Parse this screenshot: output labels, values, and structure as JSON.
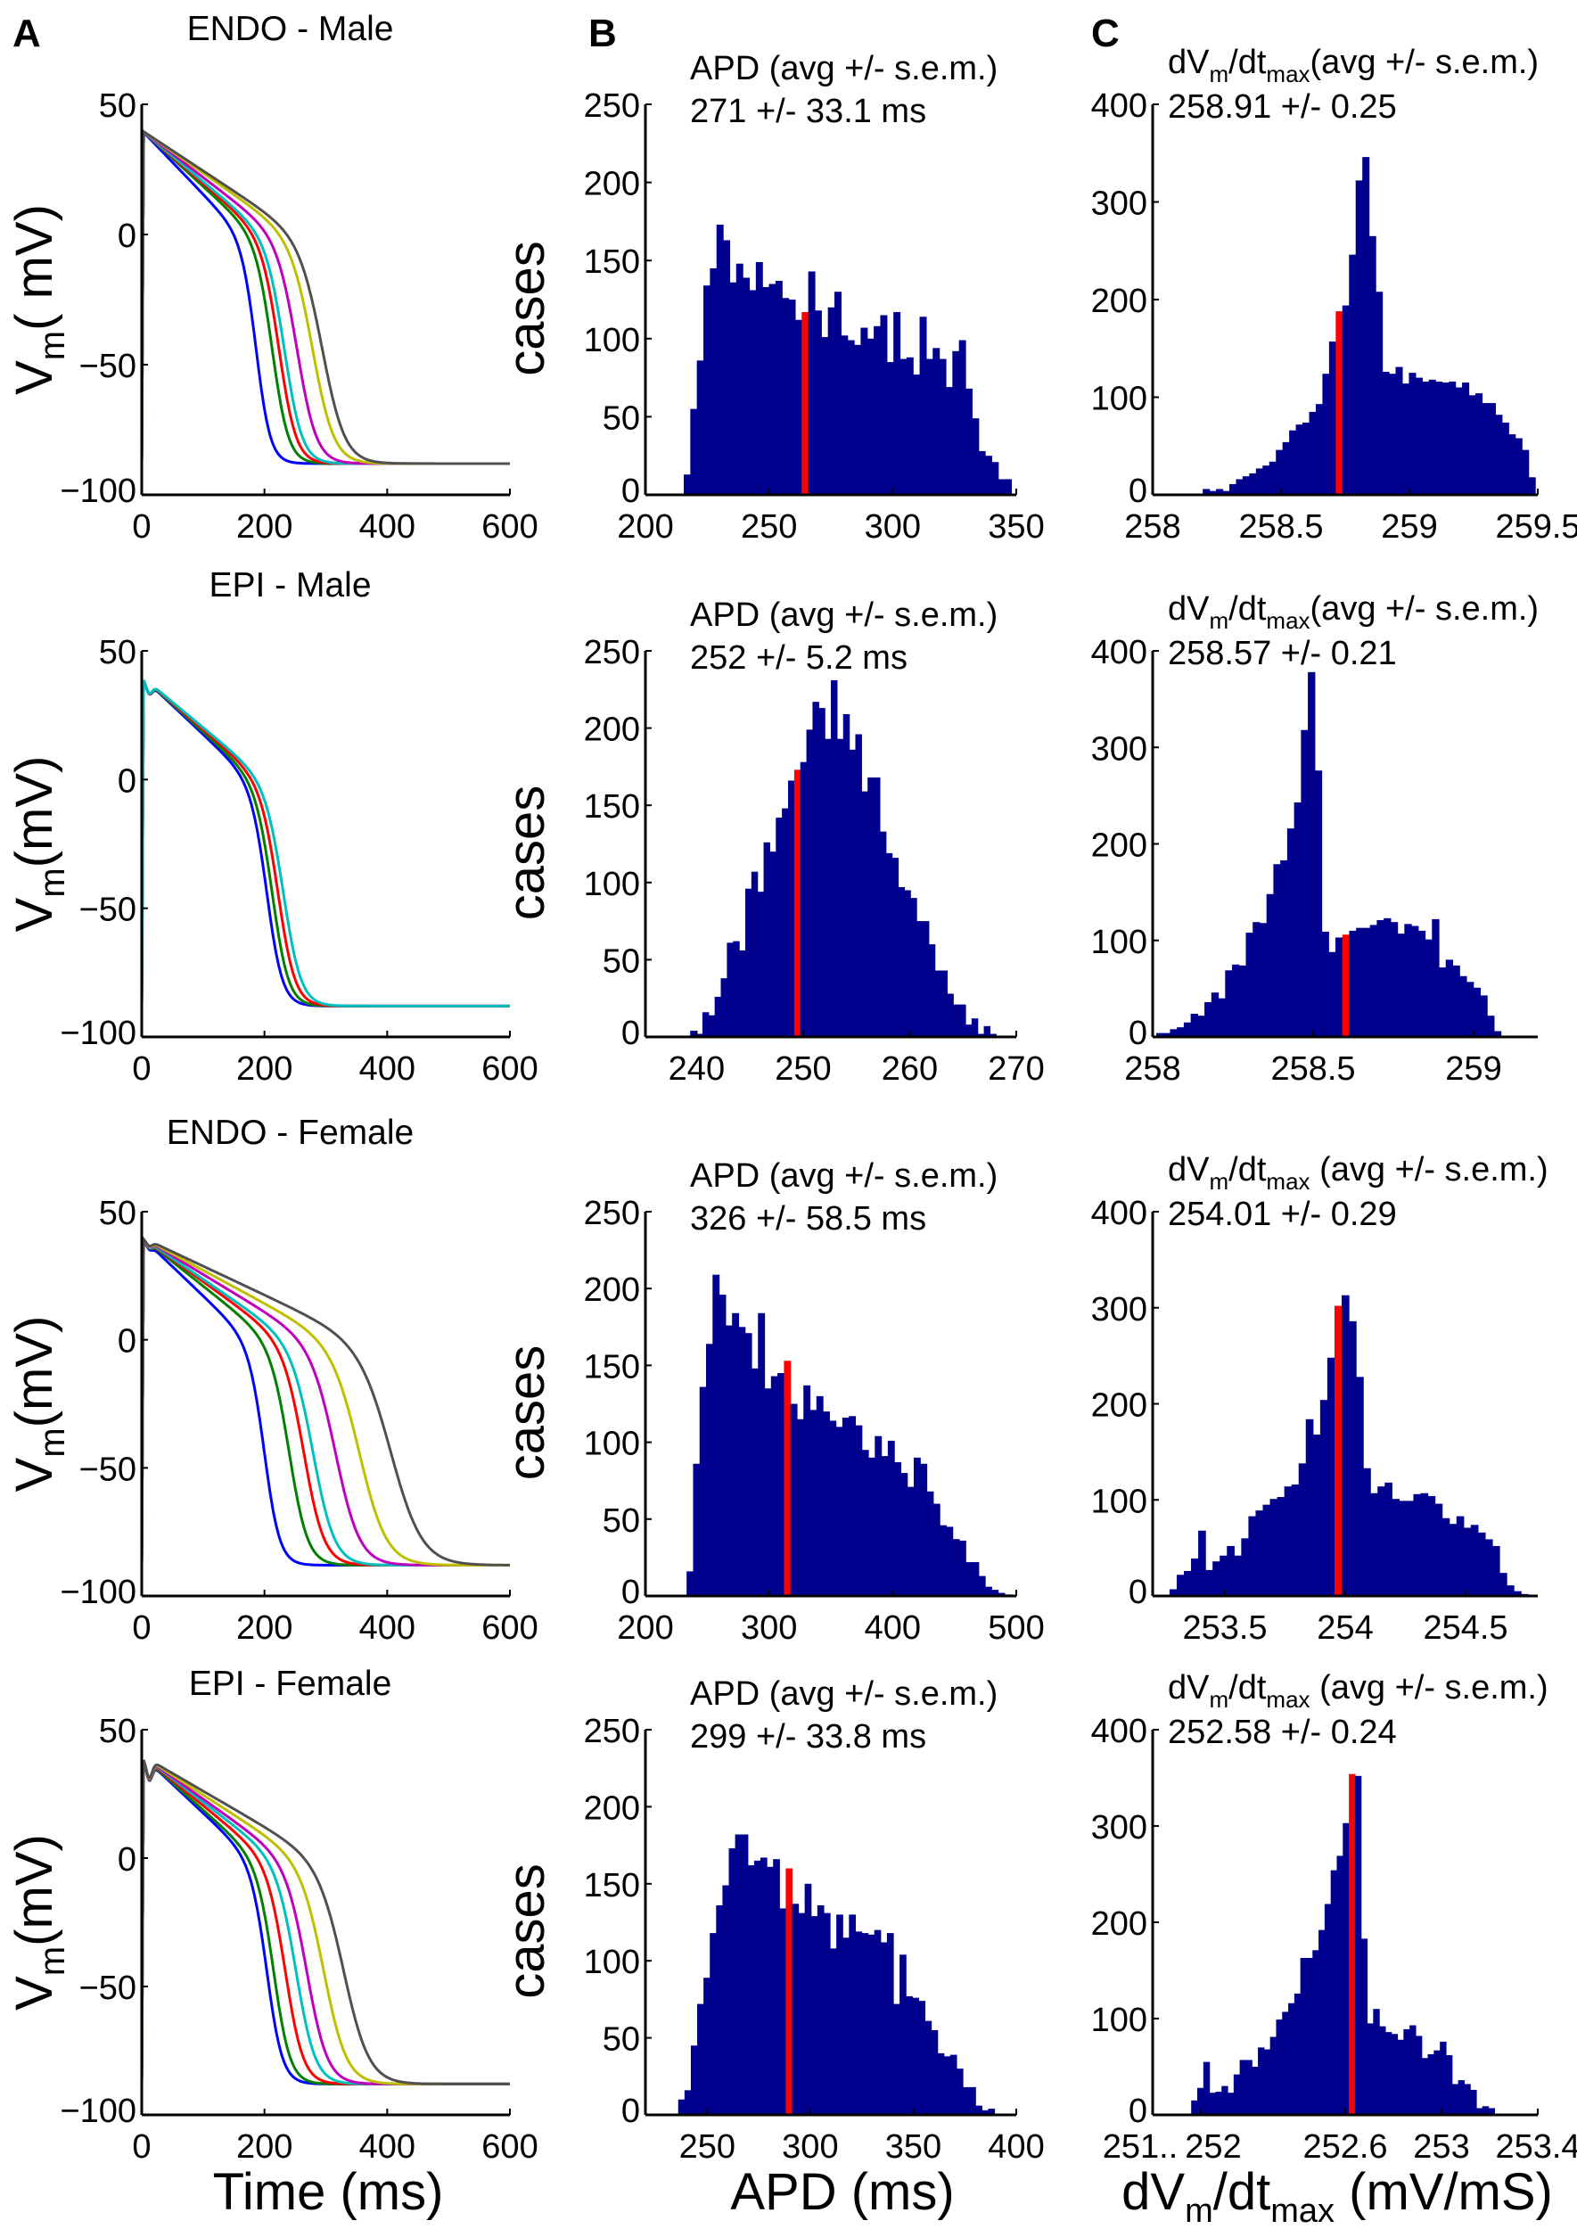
{
  "figure": {
    "panel_labels": [
      "A",
      "B",
      "C"
    ],
    "bottom_xlabels": {
      "A": {
        "text": "Time (ms)"
      },
      "B": {
        "text": "APD (ms)"
      },
      "C": {
        "a": "dV",
        "sub1": "m",
        "b": "/dt",
        "sub2": "max",
        "c": " (mV/mS)"
      }
    }
  },
  "chart_data": [
    {
      "panel": "A",
      "row": 0,
      "type": "line",
      "title": "ENDO - Male",
      "ylabel": {
        "a": "V",
        "sub": "m",
        "b": "( mV)"
      },
      "xlim": [
        0,
        600
      ],
      "ylim": [
        -100,
        50
      ],
      "xticks": [
        0,
        200,
        400,
        600
      ],
      "xticklabels": [
        "0",
        "200",
        "400",
        "600"
      ],
      "yticks": [
        -100,
        -50,
        0,
        50
      ],
      "yticklabels": [
        "−100",
        "−50",
        "0",
        "50"
      ],
      "rest_mV": -88,
      "peak_mV": 40,
      "notch_mV": 0,
      "series": [
        {
          "name": "blue",
          "color": "#0000ff",
          "repol_end_ms": 235
        },
        {
          "name": "green",
          "color": "#007f00",
          "repol_end_ms": 268
        },
        {
          "name": "red",
          "color": "#ff0000",
          "repol_end_ms": 282
        },
        {
          "name": "cyan",
          "color": "#00bfbf",
          "repol_end_ms": 293
        },
        {
          "name": "magenta",
          "color": "#bf00bf",
          "repol_end_ms": 319
        },
        {
          "name": "yellow",
          "color": "#bfbf00",
          "repol_end_ms": 351
        },
        {
          "name": "gray",
          "color": "#505050",
          "repol_end_ms": 371
        }
      ]
    },
    {
      "panel": "B",
      "row": 0,
      "type": "bar",
      "stat_label": "APD (avg +/- s.e.m.)",
      "stat_value": "271 +/- 33.1 ms",
      "ylabel": "cases",
      "xlim": [
        200,
        350
      ],
      "ylim": [
        0,
        250
      ],
      "xticks": [
        200,
        250,
        300,
        350
      ],
      "xticklabels": [
        "200",
        "250",
        "300",
        "350"
      ],
      "yticks": [
        0,
        50,
        100,
        150,
        200,
        250
      ],
      "yticklabels": [
        "0",
        "50",
        "100",
        "150",
        "200",
        "250"
      ],
      "bin_start": 215.5,
      "bin_width": 2.65,
      "mean_bin_index": 18,
      "counts": [
        13,
        55,
        86,
        134,
        145,
        173,
        163,
        136,
        148,
        139,
        131,
        149,
        133,
        135,
        137,
        126,
        125,
        112,
        117,
        143,
        118,
        101,
        120,
        130,
        102,
        99,
        96,
        107,
        100,
        108,
        115,
        85,
        117,
        87,
        88,
        77,
        114,
        87,
        94,
        87,
        69,
        92,
        99,
        68,
        49,
        28,
        25,
        21,
        10,
        10
      ]
    },
    {
      "panel": "C",
      "row": 0,
      "type": "bar",
      "stat_label": {
        "a": "dV",
        "sub1": "m",
        "b": "/dt",
        "sub2": "max",
        "c": "(avg +/- s.e.m.)"
      },
      "stat_value": "258.91 +/- 0.25",
      "xlim": [
        258,
        259.5
      ],
      "ylim": [
        0,
        400
      ],
      "xticks": [
        258,
        258.5,
        259,
        259.5
      ],
      "xticklabels": [
        "258",
        "258.5",
        "259",
        "259.5"
      ],
      "yticks": [
        0,
        100,
        200,
        300,
        400
      ],
      "yticklabels": [
        "0",
        "100",
        "200",
        "300",
        "400"
      ],
      "bin_start": 258.195,
      "bin_width": 0.0259,
      "mean_bin_index": 20,
      "counts": [
        6,
        4,
        6,
        4,
        11,
        16,
        19,
        22,
        27,
        30,
        34,
        46,
        54,
        66,
        72,
        74,
        85,
        93,
        124,
        157,
        188,
        194,
        246,
        322,
        346,
        265,
        208,
        126,
        124,
        131,
        114,
        125,
        120,
        116,
        118,
        116,
        115,
        116,
        110,
        115,
        102,
        104,
        94,
        94,
        82,
        74,
        62,
        58,
        46,
        18
      ]
    },
    {
      "panel": "A",
      "row": 1,
      "type": "line",
      "title": "EPI - Male",
      "ylabel": {
        "a": "V",
        "sub": "m",
        "b": "(mV)"
      },
      "xlim": [
        0,
        600
      ],
      "ylim": [
        -100,
        50
      ],
      "xticks": [
        0,
        200,
        400,
        600
      ],
      "xticklabels": [
        "0",
        "200",
        "400",
        "600"
      ],
      "yticks": [
        -100,
        -50,
        0,
        50
      ],
      "yticklabels": [
        "−100",
        "−50",
        "0",
        "50"
      ],
      "rest_mV": -88,
      "peak_mV": 40,
      "notch_mV": 4,
      "series": [
        {
          "name": "blue",
          "color": "#0000ff",
          "repol_end_ms": 257
        },
        {
          "name": "green",
          "color": "#007f00",
          "repol_end_ms": 268
        },
        {
          "name": "red",
          "color": "#ff0000",
          "repol_end_ms": 280
        },
        {
          "name": "cyan",
          "color": "#00bfbf",
          "repol_end_ms": 291
        }
      ]
    },
    {
      "panel": "B",
      "row": 1,
      "type": "bar",
      "stat_label": "APD (avg +/- s.e.m.)",
      "stat_value": "252 +/- 5.2 ms",
      "ylabel": "cases",
      "xlim": [
        235.2,
        270
      ],
      "ylim": [
        0,
        250
      ],
      "xticks": [
        240,
        250,
        260,
        270
      ],
      "xticklabels": [
        "240",
        "250",
        "260",
        "270"
      ],
      "yticks": [
        0,
        50,
        100,
        150,
        200,
        250
      ],
      "yticklabels": [
        "0",
        "50",
        "100",
        "150",
        "200",
        "250"
      ],
      "bin_start": 239.4,
      "bin_width": 0.574,
      "mean_bin_index": 17,
      "counts": [
        4,
        2,
        16,
        14,
        26,
        38,
        61,
        62,
        56,
        96,
        107,
        94,
        126,
        120,
        142,
        148,
        166,
        173,
        178,
        199,
        217,
        213,
        193,
        231,
        193,
        209,
        186,
        196,
        159,
        168,
        168,
        133,
        119,
        116,
        97,
        95,
        90,
        75,
        75,
        60,
        43,
        43,
        28,
        21,
        21,
        8,
        12,
        2,
        7,
        2
      ]
    },
    {
      "panel": "C",
      "row": 1,
      "type": "bar",
      "stat_label": {
        "a": "dV",
        "sub1": "m",
        "b": "/dt",
        "sub2": "max",
        "c": "(avg +/- s.e.m.)"
      },
      "stat_value": "258.57 +/- 0.21",
      "xlim": [
        258,
        259.2
      ],
      "ylim": [
        0,
        400
      ],
      "xticks": [
        258,
        258.5,
        259
      ],
      "xticklabels": [
        "258",
        "258.5",
        "259"
      ],
      "yticks": [
        0,
        100,
        200,
        300,
        400
      ],
      "yticklabels": [
        "0",
        "100",
        "200",
        "300",
        "400"
      ],
      "bin_start": 258.011,
      "bin_width": 0.02148,
      "mean_bin_index": 27,
      "counts": [
        4,
        4,
        8,
        10,
        15,
        24,
        22,
        36,
        46,
        40,
        69,
        75,
        74,
        108,
        119,
        118,
        148,
        179,
        183,
        216,
        243,
        318,
        378,
        276,
        109,
        88,
        103,
        106,
        110,
        113,
        113,
        116,
        121,
        123,
        119,
        107,
        117,
        115,
        110,
        101,
        122,
        72,
        80,
        74,
        63,
        57,
        51,
        43,
        22,
        6
      ]
    },
    {
      "panel": "A",
      "row": 2,
      "type": "line",
      "title": "ENDO - Female",
      "ylabel": {
        "a": "V",
        "sub": "m",
        "b": "(mV)"
      },
      "xlim": [
        0,
        600
      ],
      "ylim": [
        -100,
        50
      ],
      "xticks": [
        0,
        200,
        400,
        600
      ],
      "xticklabels": [
        "0",
        "200",
        "400",
        "600"
      ],
      "yticks": [
        -100,
        -50,
        0,
        50
      ],
      "yticklabels": [
        "−100",
        "−50",
        "0",
        "50"
      ],
      "rest_mV": -88,
      "peak_mV": 40,
      "notch_mV": 2,
      "series": [
        {
          "name": "blue",
          "color": "#0000ff",
          "repol_end_ms": 252
        },
        {
          "name": "green",
          "color": "#007f00",
          "repol_end_ms": 303
        },
        {
          "name": "red",
          "color": "#ff0000",
          "repol_end_ms": 333
        },
        {
          "name": "cyan",
          "color": "#00bfbf",
          "repol_end_ms": 352
        },
        {
          "name": "magenta",
          "color": "#bf00bf",
          "repol_end_ms": 398
        },
        {
          "name": "yellow",
          "color": "#bfbf00",
          "repol_end_ms": 447
        },
        {
          "name": "gray",
          "color": "#505050",
          "repol_end_ms": 512
        }
      ]
    },
    {
      "panel": "B",
      "row": 2,
      "type": "bar",
      "stat_label": "APD (avg +/- s.e.m.)",
      "stat_value": "326 +/- 58.5 ms",
      "ylabel": "cases",
      "xlim": [
        200,
        500
      ],
      "ylim": [
        0,
        250
      ],
      "xticks": [
        200,
        300,
        400,
        500
      ],
      "xticklabels": [
        "200",
        "300",
        "400",
        "500"
      ],
      "yticks": [
        0,
        50,
        100,
        150,
        200,
        250
      ],
      "yticklabels": [
        "0",
        "50",
        "100",
        "150",
        "200",
        "250"
      ],
      "bin_start": 233.3,
      "bin_width": 5.25,
      "mean_bin_index": 15,
      "counts": [
        16,
        86,
        136,
        164,
        209,
        196,
        176,
        184,
        175,
        171,
        148,
        184,
        135,
        143,
        145,
        153,
        125,
        115,
        137,
        121,
        130,
        120,
        114,
        110,
        116,
        117,
        111,
        95,
        90,
        104,
        91,
        101,
        87,
        80,
        71,
        90,
        86,
        68,
        60,
        46,
        45,
        37,
        36,
        22,
        22,
        13,
        6,
        4,
        2,
        1
      ]
    },
    {
      "panel": "C",
      "row": 2,
      "type": "bar",
      "stat_label": {
        "a": "dV",
        "sub1": "m",
        "b": "/dt",
        "sub2": "max",
        "c": " (avg +/- s.e.m.)"
      },
      "stat_value": "254.01 +/- 0.29",
      "xlim": [
        253.2,
        254.8
      ],
      "ylim": [
        0,
        400
      ],
      "xticks": [
        253.5,
        254,
        254.5
      ],
      "xticklabels": [
        "253.5",
        "254",
        "254.5"
      ],
      "yticks": [
        0,
        100,
        200,
        300,
        400
      ],
      "yticklabels": [
        "0",
        "100",
        "200",
        "300",
        "400"
      ],
      "bin_start": 253.27,
      "bin_width": 0.0298,
      "mean_bin_index": 23,
      "counts": [
        7,
        22,
        26,
        39,
        68,
        27,
        36,
        42,
        52,
        42,
        60,
        83,
        89,
        95,
        101,
        103,
        114,
        116,
        138,
        184,
        168,
        204,
        248,
        302,
        313,
        286,
        228,
        133,
        107,
        114,
        118,
        101,
        99,
        99,
        106,
        107,
        104,
        96,
        81,
        75,
        83,
        71,
        74,
        66,
        59,
        52,
        24,
        11,
        5,
        2,
        1
      ]
    },
    {
      "panel": "A",
      "row": 3,
      "type": "line",
      "title": "EPI - Female",
      "ylabel": {
        "a": "V",
        "sub": "m",
        "b": "(mV)"
      },
      "xlim": [
        0,
        600
      ],
      "ylim": [
        -100,
        50
      ],
      "xticks": [
        0,
        200,
        400,
        600
      ],
      "xticklabels": [
        "0",
        "200",
        "400",
        "600"
      ],
      "yticks": [
        -100,
        -50,
        0,
        50
      ],
      "yticklabels": [
        "−100",
        "−50",
        "0",
        "50"
      ],
      "rest_mV": -88,
      "peak_mV": 40,
      "notch_mV": 7,
      "series": [
        {
          "name": "blue",
          "color": "#0000ff",
          "repol_end_ms": 257
        },
        {
          "name": "green",
          "color": "#007f00",
          "repol_end_ms": 271
        },
        {
          "name": "red",
          "color": "#ff0000",
          "repol_end_ms": 295
        },
        {
          "name": "cyan",
          "color": "#00bfbf",
          "repol_end_ms": 317
        },
        {
          "name": "magenta",
          "color": "#bf00bf",
          "repol_end_ms": 339
        },
        {
          "name": "yellow",
          "color": "#bfbf00",
          "repol_end_ms": 374
        },
        {
          "name": "gray",
          "color": "#505050",
          "repol_end_ms": 415
        }
      ]
    },
    {
      "panel": "B",
      "row": 3,
      "type": "bar",
      "stat_label": "APD (avg +/- s.e.m.)",
      "stat_value": "299 +/- 33.8 ms",
      "ylabel": "cases",
      "xlim": [
        220,
        400
      ],
      "ylim": [
        0,
        250
      ],
      "xticks": [
        250,
        300,
        350,
        400
      ],
      "xticklabels": [
        "250",
        "300",
        "350",
        "400"
      ],
      "yticks": [
        0,
        50,
        100,
        150,
        200,
        250
      ],
      "yticklabels": [
        "0",
        "50",
        "100",
        "150",
        "200",
        "250"
      ],
      "bin_start": 235.9,
      "bin_width": 3.07,
      "mean_bin_index": 17,
      "counts": [
        10,
        16,
        45,
        72,
        89,
        118,
        136,
        149,
        173,
        182,
        182,
        162,
        165,
        167,
        161,
        166,
        134,
        160,
        137,
        131,
        150,
        129,
        136,
        131,
        108,
        130,
        115,
        130,
        119,
        118,
        117,
        120,
        112,
        118,
        72,
        104,
        77,
        76,
        74,
        61,
        55,
        40,
        38,
        39,
        30,
        18,
        18,
        6,
        3,
        4
      ]
    },
    {
      "panel": "C",
      "row": 3,
      "type": "bar",
      "stat_label": {
        "a": "dV",
        "sub1": "m",
        "b": "/dt",
        "sub2": "max",
        "c": " (avg +/- s.e.m.)"
      },
      "stat_value": "252.58 +/- 0.24",
      "xlim": [
        251.8,
        253.4
      ],
      "ylim": [
        0,
        400
      ],
      "xticks": [
        251.8,
        252.0,
        252.6,
        253.0,
        253.4
      ],
      "xticklabels": [
        "251..",
        "252",
        "252.6",
        "253",
        "253.4"
      ],
      "yticks": [
        0,
        100,
        200,
        300,
        400
      ],
      "yticklabels": [
        "0",
        "100",
        "200",
        "300",
        "400"
      ],
      "bin_start": 251.96,
      "bin_width": 0.0252,
      "mean_bin_index": 26,
      "counts": [
        15,
        28,
        55,
        23,
        24,
        30,
        23,
        42,
        57,
        57,
        50,
        70,
        68,
        81,
        99,
        107,
        116,
        126,
        163,
        163,
        171,
        192,
        219,
        254,
        269,
        303,
        354,
        352,
        183,
        95,
        110,
        92,
        86,
        84,
        78,
        89,
        93,
        82,
        59,
        63,
        67,
        76,
        62,
        32,
        36,
        32,
        26,
        7,
        9,
        7
      ]
    }
  ],
  "colors": {
    "histogram_bar": "#00008f",
    "mean_bar": "#ff0000",
    "axis": "#000000"
  }
}
